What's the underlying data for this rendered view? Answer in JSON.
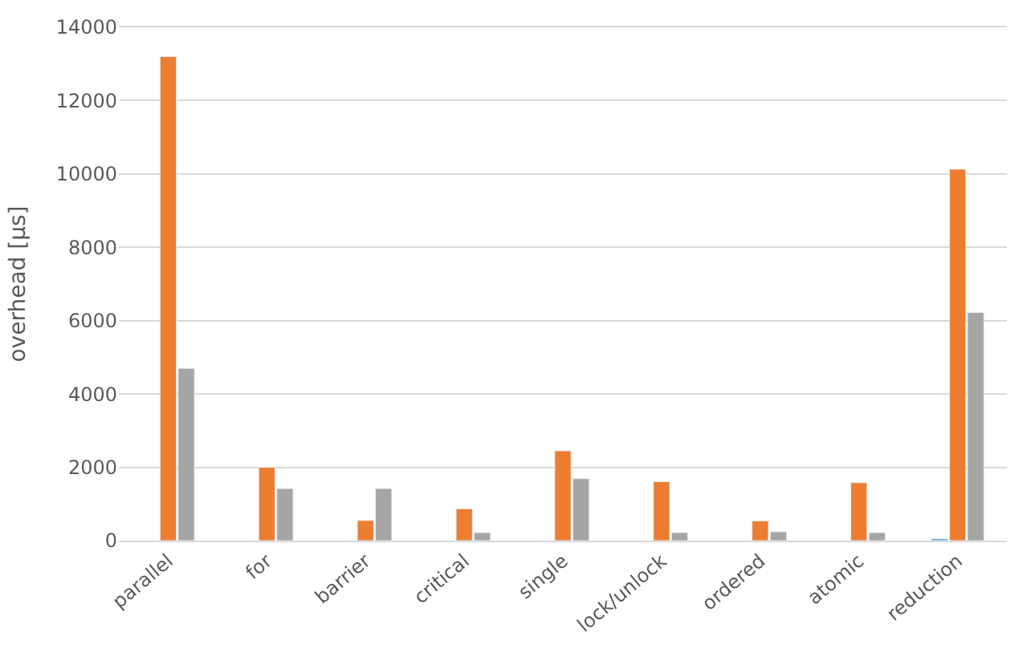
{
  "chart_data": {
    "type": "bar",
    "ylabel": "overhead [µs]",
    "categories": [
      "parallel",
      "for",
      "barrier",
      "critical",
      "single",
      "lock/unlock",
      "ordered",
      "atomic",
      "reduction"
    ],
    "series": [
      {
        "color": "#5b9bd5",
        "values": [
          null,
          null,
          null,
          null,
          null,
          null,
          null,
          null,
          50
        ]
      },
      {
        "color": "#ed7d31",
        "values": [
          13200,
          2000,
          550,
          870,
          2450,
          1610,
          540,
          1580,
          10130
        ]
      },
      {
        "color": "#a5a5a5",
        "values": [
          4700,
          1420,
          1420,
          220,
          1690,
          220,
          240,
          220,
          6220
        ]
      }
    ],
    "ylim": [
      0,
      14000
    ],
    "yticks": [
      0,
      2000,
      4000,
      6000,
      8000,
      10000,
      12000,
      14000
    ],
    "grid": "y"
  }
}
